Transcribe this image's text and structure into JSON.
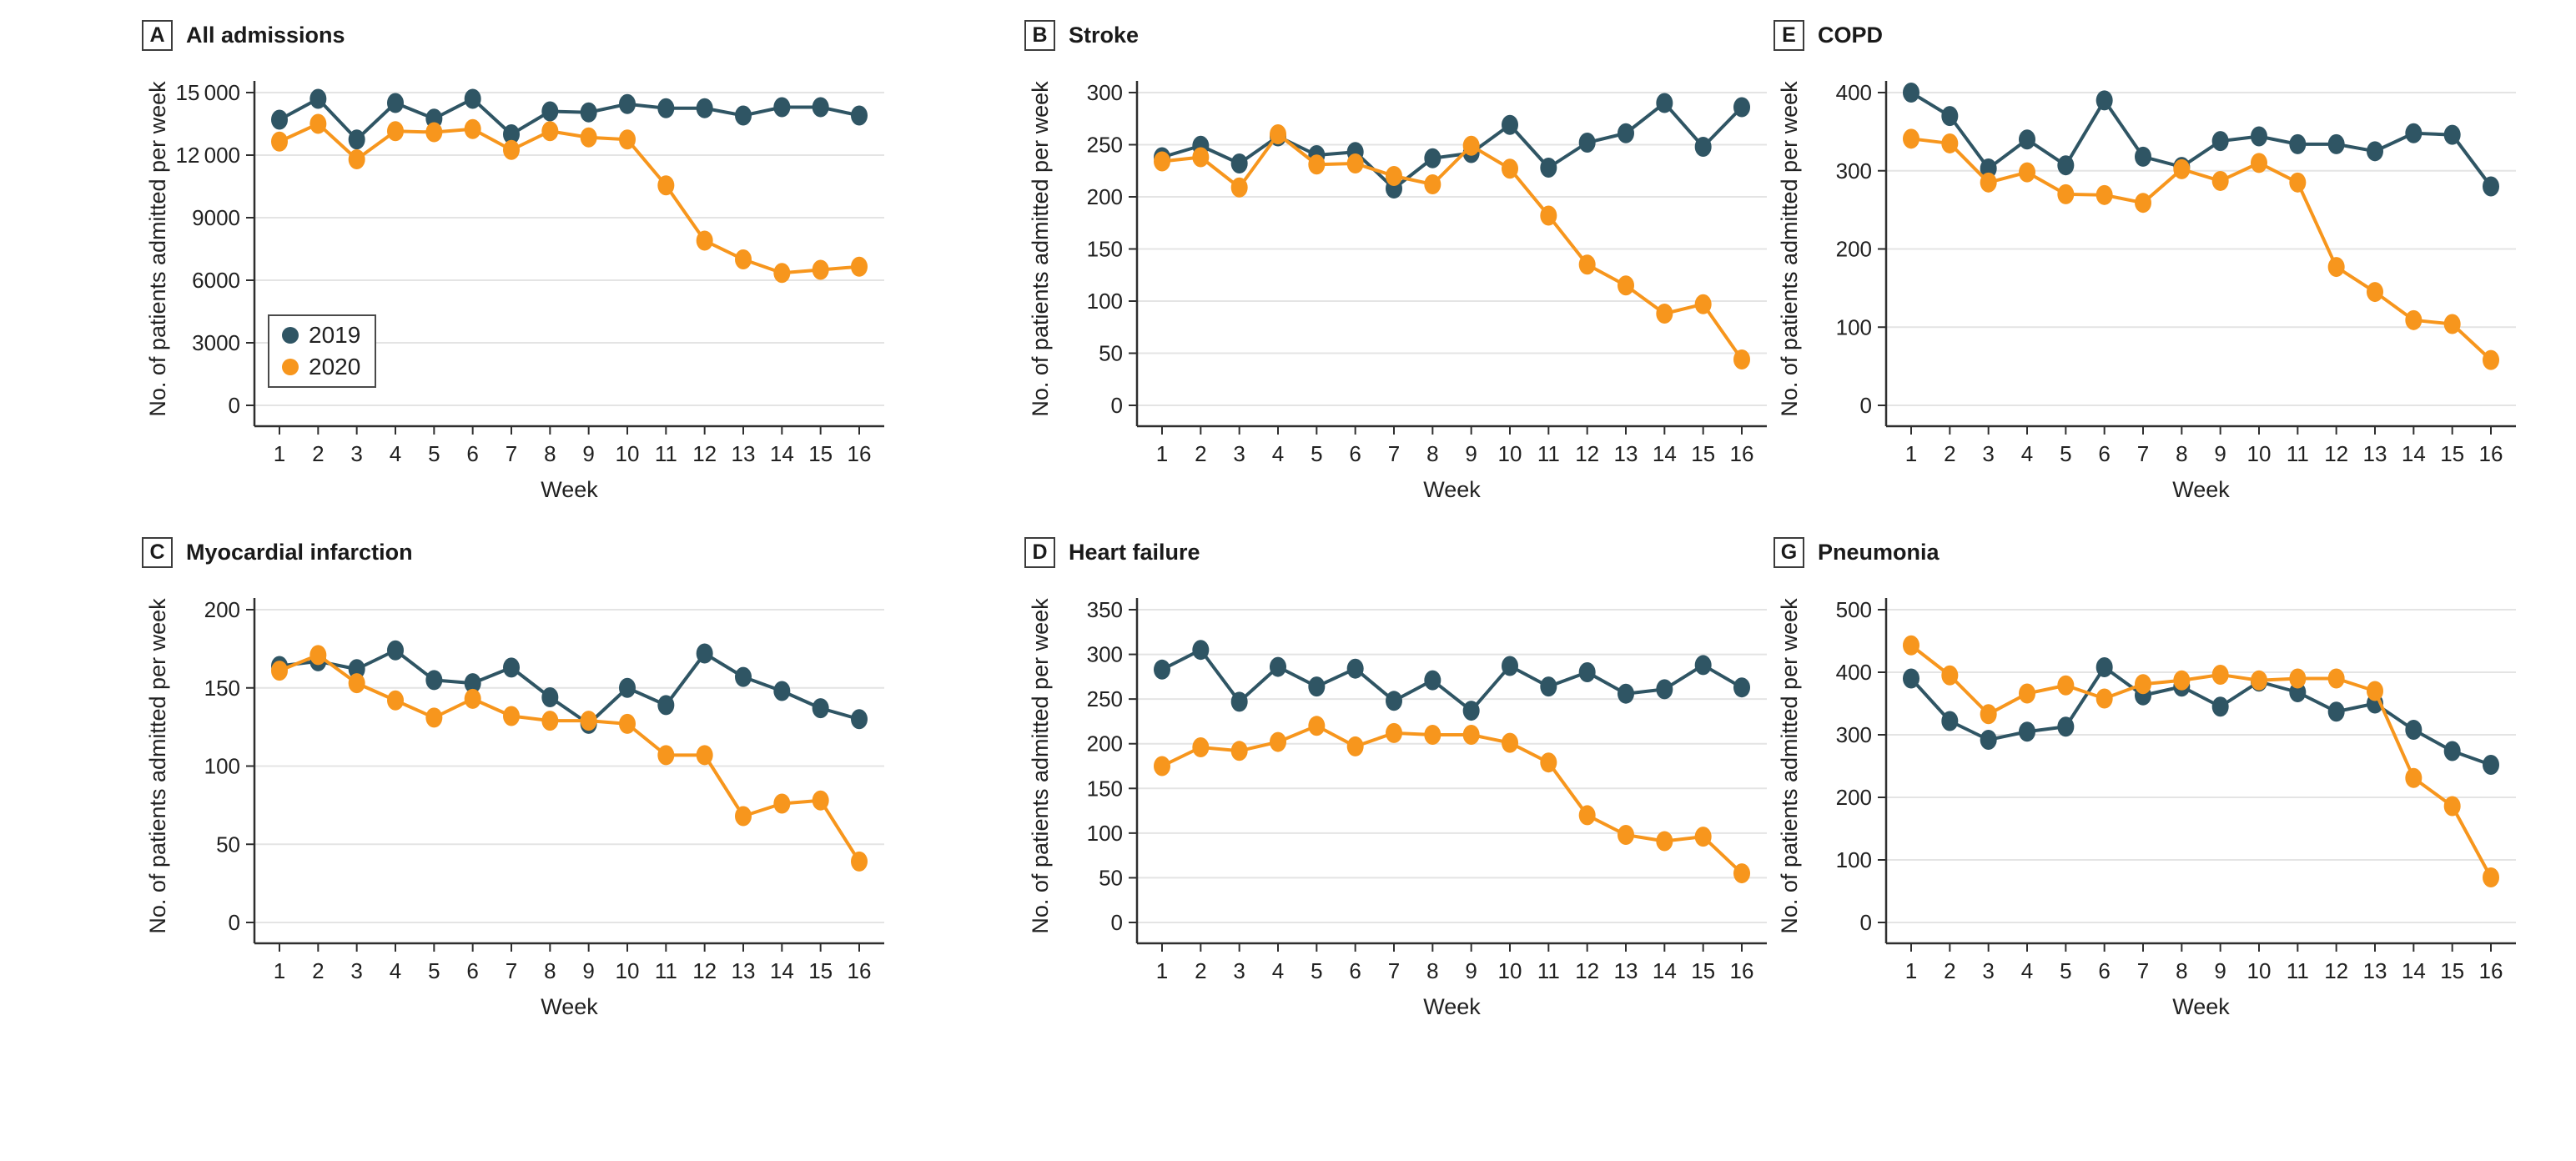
{
  "figure": {
    "legend": {
      "items": [
        {
          "label": "2019",
          "color": "#2F5564"
        },
        {
          "label": "2020",
          "color": "#F7961D"
        }
      ]
    },
    "styles": {
      "grid_color": "#E4E4E4",
      "axis_color": "#2E2E2E",
      "text_color": "#212121",
      "legend_border_color": "#4A4A4A",
      "background": "#FFFFFF"
    }
  },
  "chart_data": [
    {
      "type": "line",
      "panel_letter": "A",
      "title": "All admissions",
      "xlabel": "Week",
      "ylabel": "No. of patients admitted per week",
      "x": [
        1,
        2,
        3,
        4,
        5,
        6,
        7,
        8,
        9,
        10,
        11,
        12,
        13,
        14,
        15,
        16
      ],
      "ylim": [
        0,
        15000
      ],
      "yticks": [
        0,
        3000,
        6000,
        9000,
        12000,
        15000
      ],
      "ytick_labels": [
        "0",
        "3000",
        "6000",
        "9000",
        "12 000",
        "15 000"
      ],
      "grid": true,
      "show_legend": true,
      "legend_position": "inside-lower-left",
      "series": [
        {
          "name": "2019",
          "values": [
            13700,
            14700,
            12750,
            14500,
            13750,
            14700,
            13000,
            14100,
            14050,
            14450,
            14250,
            14250,
            13900,
            14300,
            14300,
            13900
          ]
        },
        {
          "name": "2020",
          "values": [
            12650,
            13500,
            11800,
            13150,
            13100,
            13250,
            12250,
            13150,
            12850,
            12750,
            10550,
            7900,
            7000,
            6350,
            6500,
            6650
          ]
        }
      ]
    },
    {
      "type": "line",
      "panel_letter": "B",
      "title": "Stroke",
      "xlabel": "Week",
      "ylabel": "No. of patients admitted per week",
      "x": [
        1,
        2,
        3,
        4,
        5,
        6,
        7,
        8,
        9,
        10,
        11,
        12,
        13,
        14,
        15,
        16
      ],
      "ylim": [
        0,
        300
      ],
      "yticks": [
        0,
        50,
        100,
        150,
        200,
        250,
        300
      ],
      "ytick_labels": [
        "0",
        "50",
        "100",
        "150",
        "200",
        "250",
        "300"
      ],
      "grid": true,
      "show_legend": false,
      "series": [
        {
          "name": "2019",
          "values": [
            238,
            249,
            232,
            258,
            240,
            243,
            208,
            237,
            242,
            269,
            228,
            252,
            261,
            290,
            248,
            286
          ]
        },
        {
          "name": "2020",
          "values": [
            234,
            238,
            209,
            260,
            231,
            232,
            220,
            212,
            249,
            227,
            182,
            135,
            115,
            88,
            97,
            44
          ]
        }
      ]
    },
    {
      "type": "line",
      "panel_letter": "E",
      "title": "COPD",
      "xlabel": "Week",
      "ylabel": "No. of patients admitted per week",
      "x": [
        1,
        2,
        3,
        4,
        5,
        6,
        7,
        8,
        9,
        10,
        11,
        12,
        13,
        14,
        15,
        16
      ],
      "ylim": [
        0,
        400
      ],
      "yticks": [
        0,
        100,
        200,
        300,
        400
      ],
      "ytick_labels": [
        "0",
        "100",
        "200",
        "300",
        "400"
      ],
      "grid": true,
      "show_legend": false,
      "series": [
        {
          "name": "2019",
          "values": [
            400,
            370,
            303,
            340,
            307,
            390,
            318,
            305,
            338,
            344,
            334,
            334,
            325,
            348,
            346,
            280
          ]
        },
        {
          "name": "2020",
          "values": [
            341,
            335,
            285,
            298,
            270,
            269,
            259,
            302,
            287,
            310,
            285,
            177,
            145,
            109,
            104,
            58
          ]
        }
      ]
    },
    {
      "type": "line",
      "panel_letter": "C",
      "title": "Myocardial infarction",
      "xlabel": "Week",
      "ylabel": "No. of patients admitted per week",
      "x": [
        1,
        2,
        3,
        4,
        5,
        6,
        7,
        8,
        9,
        10,
        11,
        12,
        13,
        14,
        15,
        16
      ],
      "ylim": [
        0,
        200
      ],
      "yticks": [
        0,
        50,
        100,
        150,
        200
      ],
      "ytick_labels": [
        "0",
        "50",
        "100",
        "150",
        "200"
      ],
      "grid": true,
      "show_legend": false,
      "series": [
        {
          "name": "2019",
          "values": [
            164,
            167,
            162,
            174,
            155,
            153,
            163,
            144,
            127,
            150,
            139,
            172,
            157,
            148,
            137,
            130
          ]
        },
        {
          "name": "2020",
          "values": [
            161,
            171,
            153,
            142,
            131,
            143,
            132,
            129,
            129,
            127,
            107,
            107,
            68,
            76,
            78,
            39
          ]
        }
      ]
    },
    {
      "type": "line",
      "panel_letter": "D",
      "title": "Heart failure",
      "xlabel": "Week",
      "ylabel": "No. of patients admitted per week",
      "x": [
        1,
        2,
        3,
        4,
        5,
        6,
        7,
        8,
        9,
        10,
        11,
        12,
        13,
        14,
        15,
        16
      ],
      "ylim": [
        0,
        350
      ],
      "yticks": [
        0,
        50,
        100,
        150,
        200,
        250,
        300,
        350
      ],
      "ytick_labels": [
        "0",
        "50",
        "100",
        "150",
        "200",
        "250",
        "300",
        "350"
      ],
      "grid": true,
      "show_legend": false,
      "series": [
        {
          "name": "2019",
          "values": [
            283,
            305,
            247,
            286,
            264,
            284,
            248,
            271,
            237,
            287,
            264,
            280,
            256,
            261,
            288,
            263
          ]
        },
        {
          "name": "2020",
          "values": [
            175,
            196,
            192,
            202,
            220,
            197,
            212,
            210,
            210,
            201,
            179,
            120,
            98,
            91,
            96,
            55
          ]
        }
      ]
    },
    {
      "type": "line",
      "panel_letter": "G",
      "title": "Pneumonia",
      "xlabel": "Week",
      "ylabel": "No. of patients admitted per week",
      "x": [
        1,
        2,
        3,
        4,
        5,
        6,
        7,
        8,
        9,
        10,
        11,
        12,
        13,
        14,
        15,
        16
      ],
      "ylim": [
        0,
        500
      ],
      "yticks": [
        0,
        100,
        200,
        300,
        400,
        500
      ],
      "ytick_labels": [
        "0",
        "100",
        "200",
        "300",
        "400",
        "500"
      ],
      "grid": true,
      "show_legend": false,
      "series": [
        {
          "name": "2019",
          "values": [
            390,
            322,
            292,
            305,
            313,
            408,
            363,
            377,
            345,
            385,
            368,
            337,
            350,
            308,
            274,
            252
          ]
        },
        {
          "name": "2020",
          "values": [
            443,
            395,
            333,
            366,
            379,
            358,
            381,
            387,
            396,
            387,
            390,
            390,
            370,
            231,
            186,
            72
          ]
        }
      ]
    }
  ]
}
